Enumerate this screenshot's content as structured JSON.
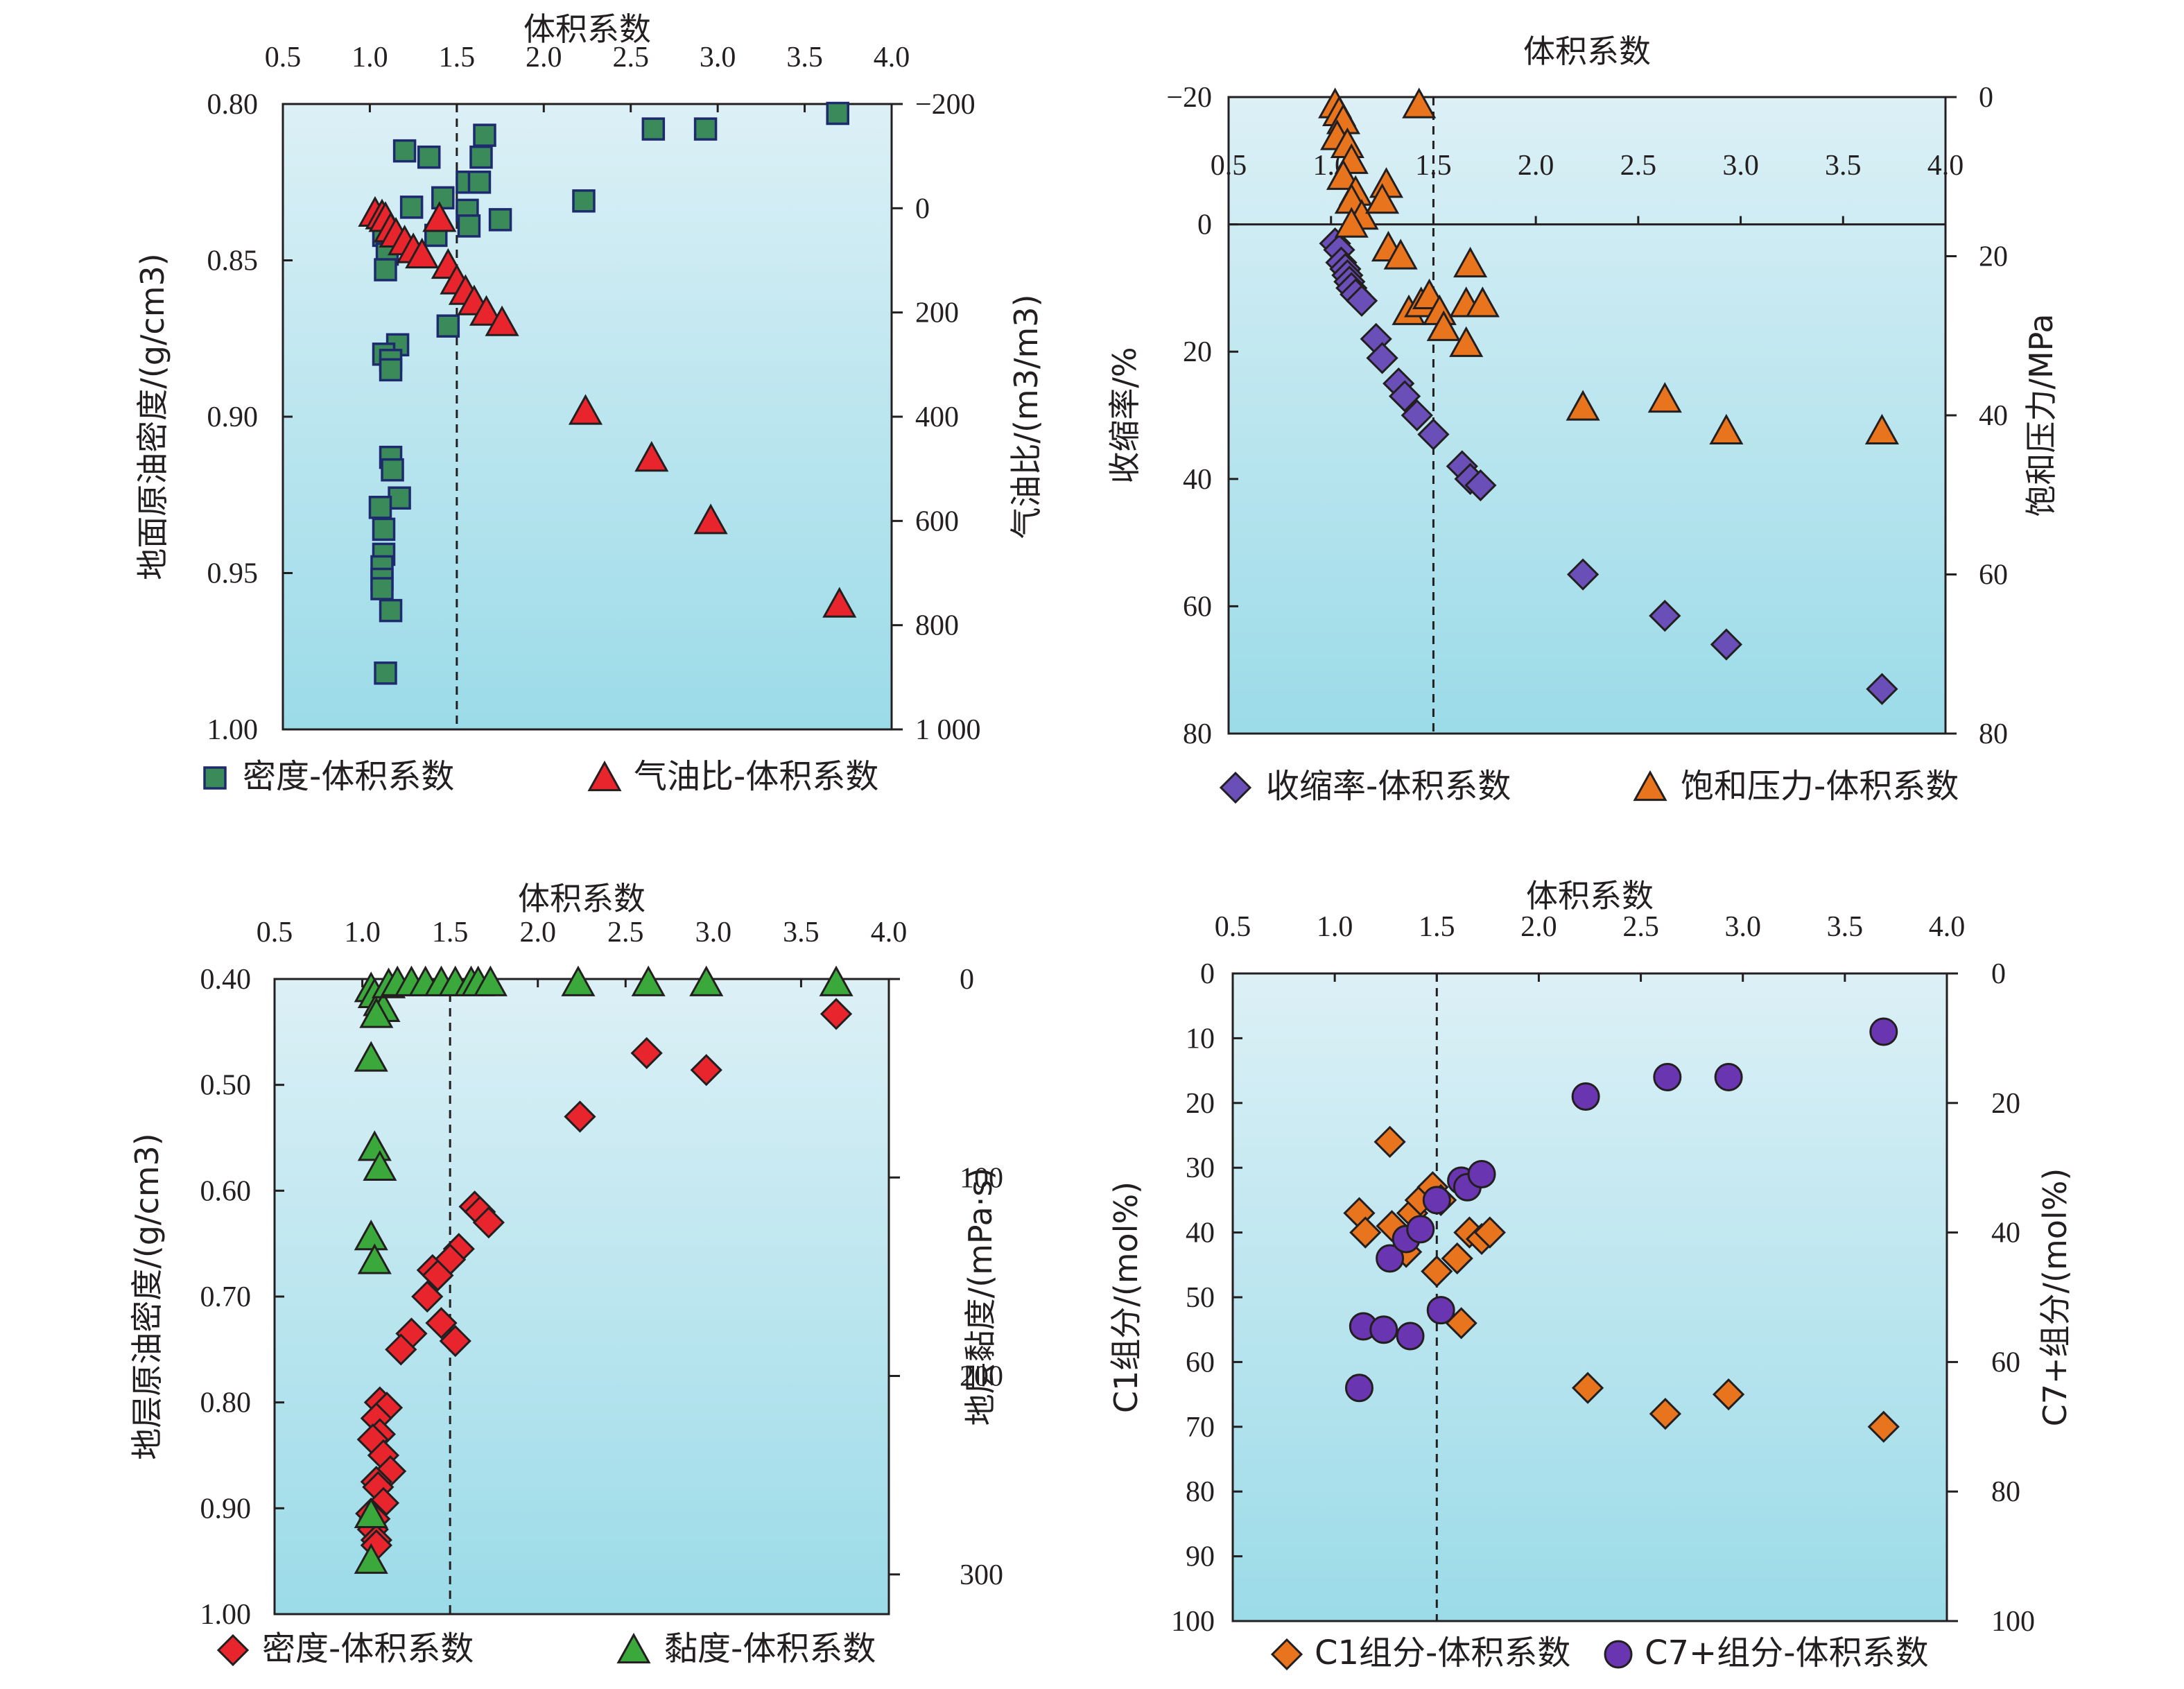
{
  "chart_data": [
    {
      "type": "scatter",
      "title": "",
      "xlabel": "体积系数",
      "ylabel_left": "地面原油密度/(g/cm3)",
      "ylabel_right": "气油比/(m3/m3)",
      "xlim": [
        0.5,
        4.0
      ],
      "ylim_left": [
        0.8,
        1.0
      ],
      "ylim_right": [
        -200,
        1000
      ],
      "x_ticks": [
        "0.5",
        "1.0",
        "1.5",
        "2.0",
        "2.5",
        "3.0",
        "3.5",
        "4.0"
      ],
      "y_left_ticks": [
        "0.80",
        "0.85",
        "0.90",
        "0.95",
        "1.00"
      ],
      "y_right_ticks": [
        "-200",
        "0",
        "200",
        "400",
        "600",
        "800",
        "1 000"
      ],
      "reference_x": 1.5,
      "legend": [
        "密度-体积系数",
        "气油比-体积系数"
      ],
      "series": [
        {
          "name": "密度-体积系数",
          "axis": "left",
          "marker": "square",
          "color": "#3a8a5a",
          "points": [
            [
              1.2,
              0.815
            ],
            [
              1.34,
              0.817
            ],
            [
              1.64,
              0.817
            ],
            [
              1.66,
              0.81
            ],
            [
              1.56,
              0.825
            ],
            [
              1.63,
              0.825
            ],
            [
              1.42,
              0.83
            ],
            [
              1.24,
              0.833
            ],
            [
              1.56,
              0.834
            ],
            [
              1.57,
              0.839
            ],
            [
              1.75,
              0.837
            ],
            [
              2.23,
              0.831
            ],
            [
              2.63,
              0.808
            ],
            [
              2.93,
              0.808
            ],
            [
              3.69,
              0.803
            ],
            [
              1.08,
              0.842
            ],
            [
              1.1,
              0.848
            ],
            [
              1.09,
              0.853
            ],
            [
              1.38,
              0.842
            ],
            [
              1.45,
              0.871
            ],
            [
              1.16,
              0.877
            ],
            [
              1.08,
              0.88
            ],
            [
              1.12,
              0.882
            ],
            [
              1.12,
              0.885
            ],
            [
              1.12,
              0.913
            ],
            [
              1.13,
              0.917
            ],
            [
              1.17,
              0.926
            ],
            [
              1.06,
              0.929
            ],
            [
              1.08,
              0.936
            ],
            [
              1.08,
              0.944
            ],
            [
              1.07,
              0.948
            ],
            [
              1.07,
              0.952
            ],
            [
              1.07,
              0.955
            ],
            [
              1.12,
              0.962
            ],
            [
              1.09,
              0.982
            ]
          ]
        },
        {
          "name": "气油比-体积系数",
          "axis": "right",
          "marker": "triangle",
          "color": "#e8252d",
          "points": [
            [
              1.03,
              10
            ],
            [
              1.07,
              15
            ],
            [
              1.09,
              20
            ],
            [
              1.12,
              40
            ],
            [
              1.15,
              50
            ],
            [
              1.2,
              65
            ],
            [
              1.25,
              80
            ],
            [
              1.3,
              90
            ],
            [
              1.4,
              20
            ],
            [
              1.45,
              110
            ],
            [
              1.5,
              140
            ],
            [
              1.55,
              160
            ],
            [
              1.6,
              180
            ],
            [
              1.67,
              200
            ],
            [
              1.76,
              220
            ],
            [
              2.24,
              390
            ],
            [
              2.62,
              480
            ],
            [
              2.96,
              600
            ],
            [
              3.7,
              760
            ]
          ]
        }
      ]
    },
    {
      "type": "scatter",
      "title": "",
      "xlabel": "体积系数",
      "ylabel_left": "收缩率/%",
      "ylabel_right": "饱和压力/MPa",
      "xlim": [
        0.5,
        4.0
      ],
      "ylim_left": [
        -20,
        80
      ],
      "ylim_right": [
        0,
        80
      ],
      "x_ticks": [
        "0.5",
        "1.0",
        "1.5",
        "2.0",
        "2.5",
        "3.0",
        "3.5",
        "4.0"
      ],
      "y_left_ticks": [
        "-20",
        "0",
        "20",
        "40",
        "60",
        "80"
      ],
      "y_right_ticks": [
        "0",
        "20",
        "40",
        "60",
        "80"
      ],
      "reference_x": 1.5,
      "legend": [
        "收缩率-体积系数",
        "饱和压力-体积系数"
      ],
      "series": [
        {
          "name": "收缩率-体积系数",
          "axis": "left",
          "marker": "diamond",
          "color": "#6a4fb8",
          "points": [
            [
              1.02,
              3
            ],
            [
              1.04,
              4
            ],
            [
              1.05,
              6
            ],
            [
              1.07,
              7
            ],
            [
              1.08,
              8
            ],
            [
              1.09,
              9
            ],
            [
              1.1,
              10
            ],
            [
              1.12,
              11
            ],
            [
              1.15,
              12
            ],
            [
              1.22,
              18
            ],
            [
              1.25,
              21
            ],
            [
              1.33,
              25
            ],
            [
              1.36,
              27
            ],
            [
              1.42,
              30
            ],
            [
              1.5,
              33
            ],
            [
              1.64,
              38
            ],
            [
              1.68,
              40
            ],
            [
              1.73,
              41
            ],
            [
              2.23,
              55
            ],
            [
              2.63,
              61.5
            ],
            [
              2.93,
              66
            ],
            [
              3.69,
              73
            ]
          ]
        },
        {
          "name": "饱和压力-体积系数",
          "axis": "right",
          "marker": "triangle",
          "color": "#e8741e",
          "points": [
            [
              1.02,
              1
            ],
            [
              1.04,
              2
            ],
            [
              1.06,
              3
            ],
            [
              1.03,
              5
            ],
            [
              1.08,
              6
            ],
            [
              1.1,
              8
            ],
            [
              1.06,
              10
            ],
            [
              1.12,
              12
            ],
            [
              1.1,
              13
            ],
            [
              1.15,
              15
            ],
            [
              1.1,
              16
            ],
            [
              1.27,
              11
            ],
            [
              1.25,
              13
            ],
            [
              1.28,
              19
            ],
            [
              1.34,
              20
            ],
            [
              1.43,
              1
            ],
            [
              1.38,
              27
            ],
            [
              1.44,
              26
            ],
            [
              1.48,
              25
            ],
            [
              1.53,
              27
            ],
            [
              1.55,
              29
            ],
            [
              1.66,
              26
            ],
            [
              1.74,
              26
            ],
            [
              1.66,
              31
            ],
            [
              1.68,
              21
            ],
            [
              2.23,
              39
            ],
            [
              2.63,
              38
            ],
            [
              2.93,
              42
            ],
            [
              3.69,
              42
            ]
          ]
        }
      ]
    },
    {
      "type": "scatter",
      "title": "",
      "xlabel": "体积系数",
      "ylabel_left": "地层原油密度/(g/cm3)",
      "ylabel_right": "地层黏度/(mPa·s)",
      "xlim": [
        0.5,
        4.0
      ],
      "ylim_left": [
        0.4,
        1.0
      ],
      "ylim_right": [
        0,
        320
      ],
      "x_ticks": [
        "0.5",
        "1.0",
        "1.5",
        "2.0",
        "2.5",
        "3.0",
        "3.5",
        "4.0"
      ],
      "y_left_ticks": [
        "0.40",
        "0.50",
        "0.60",
        "0.70",
        "0.80",
        "0.90",
        "1.00"
      ],
      "y_right_ticks": [
        "0",
        "100",
        "200",
        "300"
      ],
      "reference_x": 1.5,
      "legend": [
        "密度-体积系数",
        "黏度-体积系数"
      ],
      "series": [
        {
          "name": "密度-体积系数",
          "axis": "left",
          "marker": "diamond",
          "color": "#e8252d",
          "points": [
            [
              3.7,
              0.433
            ],
            [
              2.62,
              0.47
            ],
            [
              2.96,
              0.486
            ],
            [
              2.24,
              0.53
            ],
            [
              1.64,
              0.615
            ],
            [
              1.67,
              0.62
            ],
            [
              1.72,
              0.63
            ],
            [
              1.55,
              0.655
            ],
            [
              1.5,
              0.665
            ],
            [
              1.4,
              0.675
            ],
            [
              1.43,
              0.68
            ],
            [
              1.37,
              0.7
            ],
            [
              1.45,
              0.725
            ],
            [
              1.28,
              0.735
            ],
            [
              1.53,
              0.742
            ],
            [
              1.22,
              0.75
            ],
            [
              1.1,
              0.8
            ],
            [
              1.14,
              0.805
            ],
            [
              1.08,
              0.815
            ],
            [
              1.1,
              0.83
            ],
            [
              1.06,
              0.835
            ],
            [
              1.12,
              0.85
            ],
            [
              1.16,
              0.865
            ],
            [
              1.08,
              0.875
            ],
            [
              1.09,
              0.88
            ],
            [
              1.12,
              0.895
            ],
            [
              1.05,
              0.905
            ],
            [
              1.07,
              0.91
            ],
            [
              1.06,
              0.92
            ],
            [
              1.08,
              0.93
            ],
            [
              1.08,
              0.935
            ]
          ]
        },
        {
          "name": "黏度-体积系数",
          "axis": "right",
          "marker": "triangle",
          "color": "#3aa83a",
          "points": [
            [
              1.05,
              5
            ],
            [
              1.07,
              8
            ],
            [
              1.1,
              12
            ],
            [
              1.12,
              15
            ],
            [
              1.08,
              18
            ],
            [
              1.15,
              3
            ],
            [
              1.2,
              2
            ],
            [
              1.28,
              2
            ],
            [
              1.36,
              2
            ],
            [
              1.45,
              2
            ],
            [
              1.53,
              2
            ],
            [
              1.62,
              2
            ],
            [
              1.66,
              2
            ],
            [
              1.73,
              2
            ],
            [
              2.23,
              2
            ],
            [
              2.63,
              2
            ],
            [
              2.96,
              2
            ],
            [
              3.7,
              2
            ],
            [
              1.05,
              40
            ],
            [
              1.07,
              85
            ],
            [
              1.1,
              95
            ],
            [
              1.05,
              130
            ],
            [
              1.07,
              142
            ],
            [
              1.05,
              270
            ],
            [
              1.05,
              293
            ]
          ]
        }
      ]
    },
    {
      "type": "scatter",
      "title": "",
      "xlabel": "体积系数",
      "ylabel_left": "C1组分/(mol%)",
      "ylabel_right": "C7+组分/(mol%)",
      "xlim": [
        0.5,
        4.0
      ],
      "ylim_left": [
        0,
        100
      ],
      "ylim_right": [
        0,
        100
      ],
      "x_ticks": [
        "0.5",
        "1.0",
        "1.5",
        "2.0",
        "2.5",
        "3.0",
        "3.5",
        "4.0"
      ],
      "y_left_ticks": [
        "0",
        "10",
        "20",
        "30",
        "40",
        "50",
        "60",
        "70",
        "80",
        "90",
        "100"
      ],
      "y_right_ticks": [
        "0",
        "20",
        "40",
        "60",
        "80",
        "100"
      ],
      "reference_x": 1.5,
      "legend": [
        "C1组分-体积系数",
        "C7+组分-体积系数"
      ],
      "series": [
        {
          "name": "C1组分-体积系数",
          "axis": "left",
          "marker": "diamond",
          "color": "#e8741e",
          "points": [
            [
              1.27,
              26
            ],
            [
              1.12,
              37
            ],
            [
              1.15,
              40
            ],
            [
              1.28,
              39
            ],
            [
              1.35,
              43
            ],
            [
              1.38,
              37
            ],
            [
              1.42,
              35
            ],
            [
              1.48,
              33
            ],
            [
              1.52,
              35
            ],
            [
              1.5,
              46
            ],
            [
              1.6,
              44
            ],
            [
              1.62,
              54
            ],
            [
              1.66,
              40
            ],
            [
              1.72,
              41
            ],
            [
              1.76,
              40
            ],
            [
              2.24,
              64
            ],
            [
              2.62,
              68
            ],
            [
              2.93,
              65
            ],
            [
              3.69,
              70
            ]
          ]
        },
        {
          "name": "C7+组分-体积系数",
          "axis": "right",
          "marker": "circle",
          "color": "#6a35b0",
          "points": [
            [
              1.12,
              64
            ],
            [
              1.14,
              54.5
            ],
            [
              1.24,
              55
            ],
            [
              1.37,
              56
            ],
            [
              1.27,
              44
            ],
            [
              1.35,
              41
            ],
            [
              1.42,
              39.5
            ],
            [
              1.52,
              52
            ],
            [
              1.5,
              35
            ],
            [
              1.62,
              32
            ],
            [
              1.65,
              33
            ],
            [
              1.72,
              31
            ],
            [
              2.23,
              19
            ],
            [
              2.63,
              16
            ],
            [
              2.93,
              16
            ],
            [
              3.69,
              9
            ]
          ]
        }
      ]
    }
  ]
}
